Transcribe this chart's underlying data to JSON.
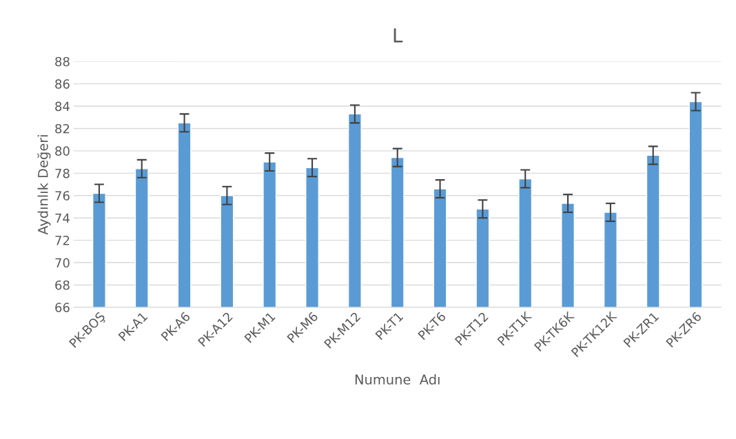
{
  "chart_data": {
    "type": "bar",
    "title": "L",
    "xlabel": "Numune  Adı",
    "ylabel": "Aydınlık Değeri",
    "categories": [
      "PK-BOŞ",
      "PK-A1",
      "PK-A6",
      "PK-A12",
      "PK-M1",
      "PK-M6",
      "PK-M12",
      "PK-T1",
      "PK-T6",
      "PK-T12",
      "PK-T1K",
      "PK-TK6K",
      "PK-TK12K",
      "PK-ZR1",
      "PK-ZR6"
    ],
    "values": [
      76.2,
      78.4,
      82.5,
      76.0,
      79.0,
      78.5,
      83.3,
      79.4,
      76.6,
      74.8,
      77.5,
      75.3,
      74.5,
      79.6,
      84.4
    ],
    "errors": [
      0.8,
      0.8,
      0.8,
      0.8,
      0.8,
      0.8,
      0.8,
      0.8,
      0.8,
      0.8,
      0.8,
      0.8,
      0.8,
      0.8,
      0.8
    ],
    "color": "#5b9bd5",
    "ylim": [
      66,
      88
    ],
    "yticks": [
      66,
      68,
      70,
      72,
      74,
      76,
      78,
      80,
      82,
      84,
      86,
      88
    ],
    "grid": "y"
  }
}
